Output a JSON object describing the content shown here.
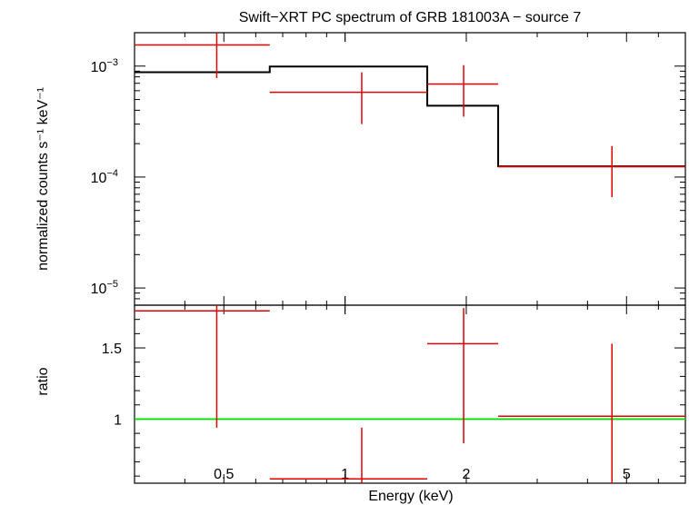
{
  "colors": {
    "data": "#e00000",
    "model": "#000000",
    "ratio_line": "#00dd00",
    "axes": "#000000"
  },
  "chart_data": [
    {
      "type": "line",
      "panel": "spectrum",
      "title": "Swift−XRT PC spectrum of GRB 181003A − source 7",
      "xlabel": "Energy (keV)",
      "ylabel": "normalized counts s⁻¹ keV⁻¹",
      "xscale": "log",
      "yscale": "log",
      "xlim": [
        0.3,
        7.0
      ],
      "ylim": [
        7e-06,
        0.002
      ],
      "ytick_labels": [
        {
          "value": 0.001,
          "base": "10",
          "exp": "−3"
        },
        {
          "value": 0.0001,
          "base": "10",
          "exp": "−4"
        },
        {
          "value": 1e-05,
          "base": "10",
          "exp": "−5"
        }
      ],
      "series": [
        {
          "name": "data",
          "points": [
            {
              "x": 0.48,
              "xlo": 0.3,
              "xhi": 0.65,
              "y": 0.00155,
              "ylo": 0.00078,
              "yhi": 0.0025
            },
            {
              "x": 1.1,
              "xlo": 0.65,
              "xhi": 1.6,
              "y": 0.00058,
              "ylo": 0.0003,
              "yhi": 0.00088
            },
            {
              "x": 1.97,
              "xlo": 1.6,
              "xhi": 2.4,
              "y": 0.00069,
              "ylo": 0.00035,
              "yhi": 0.00102
            },
            {
              "x": 4.6,
              "xlo": 2.4,
              "xhi": 7.0,
              "y": 0.000124,
              "ylo": 6.6e-05,
              "yhi": 0.00019
            }
          ]
        },
        {
          "name": "model",
          "steps": [
            {
              "xlo": 0.3,
              "xhi": 0.65,
              "y": 0.00088
            },
            {
              "xlo": 0.65,
              "xhi": 1.6,
              "y": 0.00099
            },
            {
              "xlo": 1.6,
              "xhi": 2.4,
              "y": 0.00044
            },
            {
              "xlo": 2.4,
              "xhi": 7.0,
              "y": 0.000125
            }
          ]
        }
      ]
    },
    {
      "type": "scatter",
      "panel": "ratio",
      "xlabel": "Energy (keV)",
      "ylabel": "ratio",
      "xscale": "log",
      "xlim": [
        0.3,
        7.0
      ],
      "ylim": [
        0.55,
        1.8
      ],
      "ytick_labels": [
        "1.5",
        "1"
      ],
      "xtick_labels": [
        "0.5",
        "1",
        "2",
        "5"
      ],
      "reference_line": 1,
      "series": [
        {
          "name": "ratio",
          "points": [
            {
              "x": 0.48,
              "xlo": 0.3,
              "xhi": 0.65,
              "y": 1.76,
              "ylo": 0.94,
              "yhi": 1.85
            },
            {
              "x": 1.1,
              "xlo": 0.65,
              "xhi": 1.6,
              "y": 0.58,
              "ylo": 0.5,
              "yhi": 0.94
            },
            {
              "x": 1.97,
              "xlo": 1.6,
              "xhi": 2.4,
              "y": 1.53,
              "ylo": 0.83,
              "yhi": 1.78
            },
            {
              "x": 4.6,
              "xlo": 2.4,
              "xhi": 7.0,
              "y": 1.02,
              "ylo": 0.5,
              "yhi": 1.53
            }
          ]
        }
      ]
    }
  ]
}
